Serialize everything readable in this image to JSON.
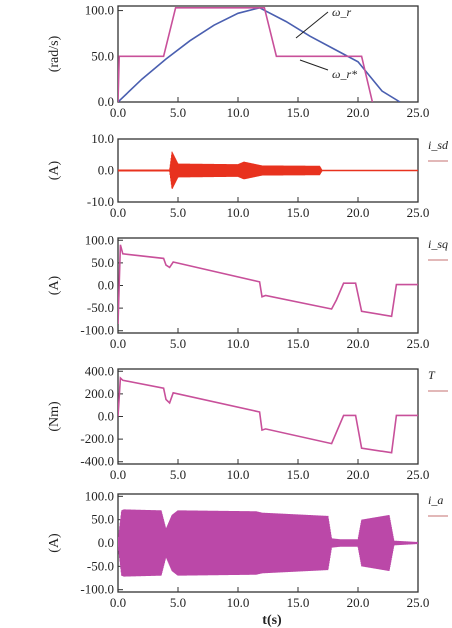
{
  "colors": {
    "axis": "#333333",
    "blue": "#4a5fb0",
    "pink": "#c8509a",
    "red": "#e8321e",
    "magenta": "#bb48a8",
    "legend_line": "#d9a0a0"
  },
  "x_label": "t(s)",
  "chart_data": [
    {
      "type": "line",
      "id": "speed",
      "ylabel": "(rad/s)",
      "xlim": [
        0,
        25
      ],
      "ylim": [
        0,
        105
      ],
      "yticks": [
        0,
        50,
        100
      ],
      "ytick_labels": [
        "0.0",
        "50.0",
        "100.0"
      ],
      "xticks": [
        0,
        5,
        10,
        15,
        20,
        25
      ],
      "xtick_labels": [
        "0.0",
        "5.0",
        "10.0",
        "15.0",
        "20.0",
        "25.0"
      ],
      "series": [
        {
          "name": "ω_r",
          "x": [
            0,
            2,
            4,
            6,
            8,
            10,
            11.8,
            14,
            16,
            18,
            20,
            22,
            23.5
          ],
          "y": [
            0,
            25,
            47,
            67,
            84,
            97,
            103,
            88,
            72,
            58,
            44,
            12,
            0
          ]
        },
        {
          "name": "ω_r*",
          "x": [
            0,
            0.1,
            3.8,
            4.8,
            11.2,
            11.8,
            12.2,
            13.2,
            19.8,
            20.3,
            21.2
          ],
          "y": [
            0,
            50,
            50,
            103,
            103,
            103,
            103,
            50,
            50,
            50,
            0
          ]
        }
      ],
      "annotations": [
        "ω_r",
        "ω_r*"
      ]
    },
    {
      "type": "line",
      "id": "current-sd",
      "ylabel": "(A)",
      "xlim": [
        0,
        25
      ],
      "ylim": [
        -10,
        10
      ],
      "yticks": [
        -10,
        0,
        10
      ],
      "ytick_labels": [
        "-10.0",
        "0.0",
        "10.0"
      ],
      "xticks": [
        0,
        5,
        10,
        15,
        20,
        25
      ],
      "xtick_labels": [
        "0.0",
        "5.0",
        "10.0",
        "15.0",
        "20.0",
        "25.0"
      ],
      "series": [
        {
          "name": "i_sd",
          "envelope_x": [
            0,
            4.3,
            4.5,
            5.0,
            10.0,
            10.5,
            12.0,
            16.8,
            17.0,
            25
          ],
          "envelope_amp": [
            0.3,
            0.3,
            6.0,
            2.2,
            2.0,
            2.8,
            1.6,
            1.5,
            0.2,
            0.2
          ]
        }
      ],
      "legend": "i_sd"
    },
    {
      "type": "line",
      "id": "current-sq",
      "ylabel": "(A)",
      "xlim": [
        0,
        25
      ],
      "ylim": [
        -105,
        105
      ],
      "yticks": [
        -100,
        -50,
        0,
        50,
        100
      ],
      "ytick_labels": [
        "-100.0",
        "-50.0",
        "0.0",
        "50.0",
        "100.0"
      ],
      "xticks": [
        0,
        5,
        10,
        15,
        20,
        25
      ],
      "xtick_labels": [
        "0.0",
        "5.0",
        "10.0",
        "15.0",
        "20.0",
        "25.0"
      ],
      "series": [
        {
          "name": "i_sq",
          "x": [
            0,
            0.2,
            0.4,
            3.8,
            4.0,
            4.3,
            4.6,
            11.8,
            12.0,
            12.3,
            17.8,
            18.2,
            18.8,
            19.8,
            20.3,
            22.8,
            23.2,
            25
          ],
          "y": [
            -85,
            90,
            70,
            60,
            45,
            40,
            52,
            8,
            -25,
            -22,
            -52,
            -32,
            5,
            5,
            -57,
            -68,
            2,
            2
          ]
        }
      ],
      "legend": "i_sq"
    },
    {
      "type": "line",
      "id": "torque",
      "ylabel": "(Nm)",
      "xlim": [
        0,
        25
      ],
      "ylim": [
        -420,
        420
      ],
      "yticks": [
        -400,
        -200,
        0,
        200,
        400
      ],
      "ytick_labels": [
        "-400.0",
        "-200.0",
        "0.0",
        "200.0",
        "400.0"
      ],
      "xticks": [
        0,
        5,
        10,
        15,
        20,
        25
      ],
      "xtick_labels": [
        "0.0",
        "5.0",
        "10.0",
        "15.0",
        "20.0",
        "25.0"
      ],
      "series": [
        {
          "name": "T",
          "x": [
            0,
            0.2,
            0.4,
            3.8,
            4.0,
            4.3,
            4.6,
            11.8,
            12.0,
            12.3,
            17.8,
            18.2,
            18.8,
            19.8,
            20.3,
            22.8,
            23.2,
            25
          ],
          "y": [
            0,
            340,
            320,
            250,
            150,
            120,
            210,
            40,
            -120,
            -110,
            -240,
            -140,
            10,
            10,
            -280,
            -320,
            10,
            10
          ]
        }
      ],
      "legend": "T"
    },
    {
      "type": "line",
      "id": "phase-current",
      "ylabel": "(A)",
      "xlim": [
        0,
        25
      ],
      "ylim": [
        -105,
        105
      ],
      "yticks": [
        -100,
        -50,
        0,
        50,
        100
      ],
      "ytick_labels": [
        "-100.0",
        "-50.0",
        "0.0",
        "50.0",
        "100.0"
      ],
      "xticks": [
        0,
        5,
        10,
        15,
        20,
        25
      ],
      "xtick_labels": [
        "0.0",
        "5.0",
        "10.0",
        "15.0",
        "20.0",
        "25.0"
      ],
      "series": [
        {
          "name": "i_a",
          "envelope_x": [
            0,
            0.3,
            0.5,
            3.6,
            4.0,
            4.5,
            5.0,
            11.5,
            12.0,
            17.5,
            17.8,
            18.5,
            20.0,
            20.3,
            22.6,
            23.0,
            25
          ],
          "envelope_amp": [
            5,
            70,
            72,
            70,
            30,
            60,
            70,
            68,
            65,
            58,
            10,
            8,
            8,
            50,
            60,
            5,
            2
          ]
        }
      ],
      "legend": "i_a"
    }
  ]
}
